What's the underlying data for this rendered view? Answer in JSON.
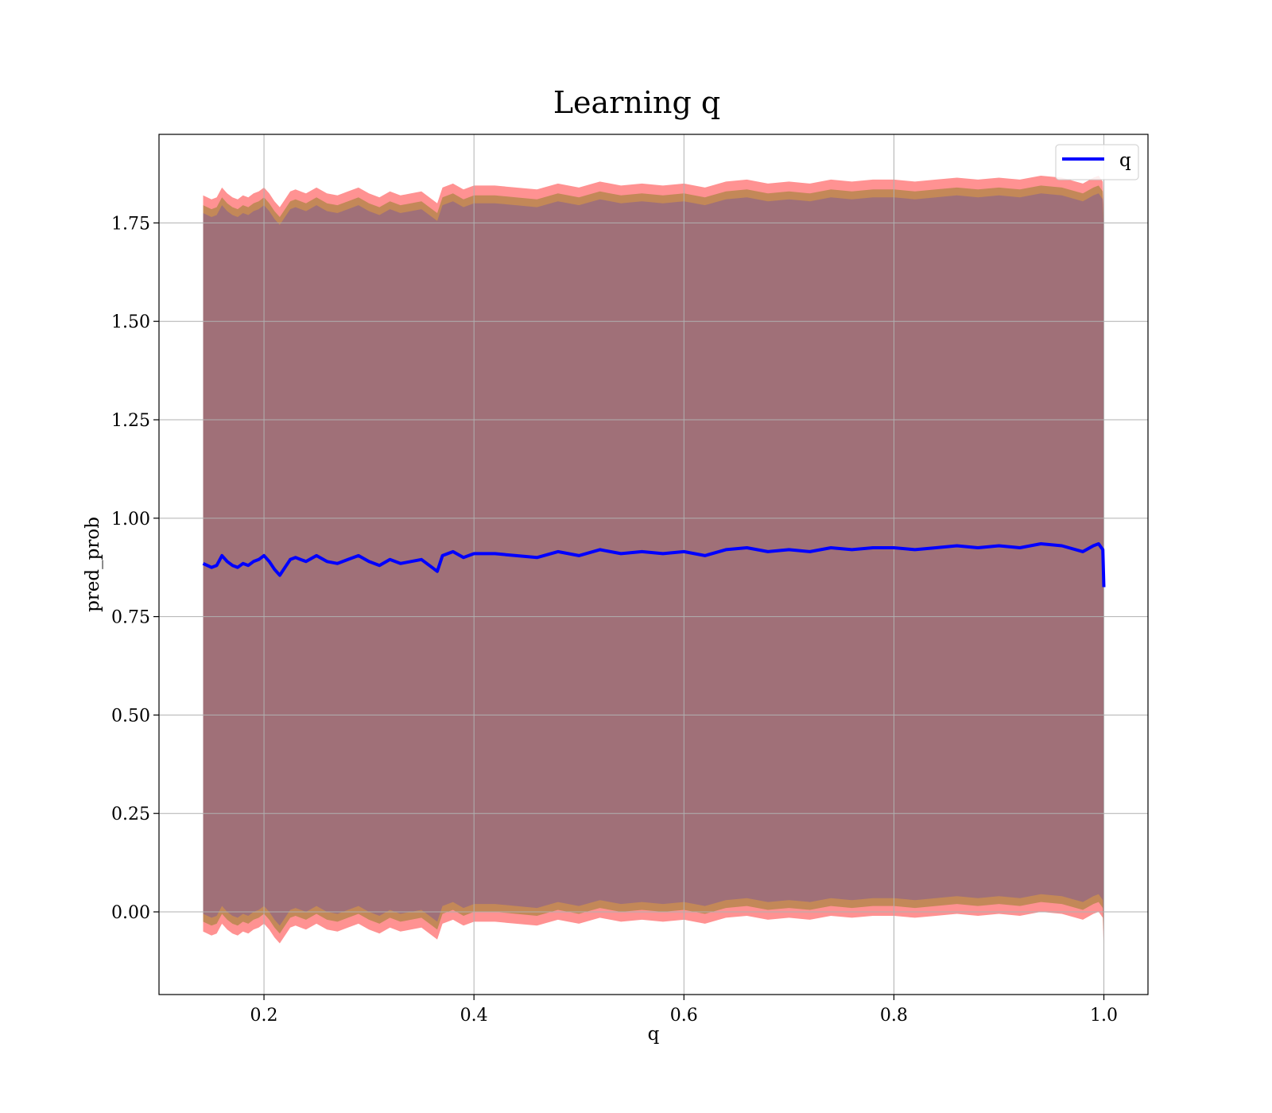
{
  "chart_data": {
    "type": "line",
    "title": "Learning q",
    "xlabel": "q",
    "ylabel": "pred_prob",
    "xlim": [
      0.1,
      1.042
    ],
    "ylim": [
      -0.21,
      1.975
    ],
    "x_ticks": [
      0.2,
      0.4,
      0.6,
      0.8,
      1.0
    ],
    "x_tick_labels": [
      "0.2",
      "0.4",
      "0.6",
      "0.8",
      "1.0"
    ],
    "y_ticks": [
      0.0,
      0.25,
      0.5,
      0.75,
      1.0,
      1.25,
      1.5,
      1.75
    ],
    "y_tick_labels": [
      "0.00",
      "0.25",
      "0.50",
      "0.75",
      "1.00",
      "1.25",
      "1.50",
      "1.75"
    ],
    "grid": true,
    "legend": {
      "placement": "top-right",
      "entries": [
        "q"
      ]
    },
    "series": [
      {
        "name": "q",
        "color": "#0000ff",
        "x": [
          0.142,
          0.15,
          0.155,
          0.16,
          0.165,
          0.17,
          0.175,
          0.18,
          0.185,
          0.19,
          0.195,
          0.2,
          0.205,
          0.21,
          0.215,
          0.22,
          0.225,
          0.23,
          0.24,
          0.25,
          0.26,
          0.27,
          0.28,
          0.29,
          0.3,
          0.31,
          0.32,
          0.33,
          0.34,
          0.35,
          0.36,
          0.365,
          0.37,
          0.38,
          0.39,
          0.4,
          0.42,
          0.44,
          0.46,
          0.48,
          0.5,
          0.52,
          0.54,
          0.56,
          0.58,
          0.6,
          0.62,
          0.64,
          0.66,
          0.68,
          0.7,
          0.72,
          0.74,
          0.76,
          0.78,
          0.8,
          0.82,
          0.84,
          0.86,
          0.88,
          0.9,
          0.92,
          0.94,
          0.96,
          0.98,
          0.99,
          0.995,
          0.999,
          1.0
        ],
        "y": [
          0.885,
          0.875,
          0.88,
          0.905,
          0.89,
          0.88,
          0.875,
          0.885,
          0.88,
          0.89,
          0.895,
          0.905,
          0.89,
          0.87,
          0.855,
          0.875,
          0.895,
          0.9,
          0.89,
          0.905,
          0.89,
          0.885,
          0.895,
          0.905,
          0.89,
          0.88,
          0.895,
          0.885,
          0.89,
          0.895,
          0.875,
          0.865,
          0.905,
          0.915,
          0.9,
          0.91,
          0.91,
          0.905,
          0.9,
          0.915,
          0.905,
          0.92,
          0.91,
          0.915,
          0.91,
          0.915,
          0.905,
          0.92,
          0.925,
          0.915,
          0.92,
          0.915,
          0.925,
          0.92,
          0.925,
          0.925,
          0.92,
          0.925,
          0.93,
          0.925,
          0.93,
          0.925,
          0.935,
          0.93,
          0.915,
          0.93,
          0.935,
          0.92,
          0.825
        ]
      }
    ],
    "bands": [
      {
        "color": "#ff7f7f",
        "lower_offset": -0.935,
        "upper_offset": 0.935
      },
      {
        "color": "#b8864d",
        "lower_offset": -0.91,
        "upper_offset": 0.91
      },
      {
        "color": "#a07078",
        "lower_offset": -0.89,
        "upper_offset": 0.89
      }
    ]
  }
}
